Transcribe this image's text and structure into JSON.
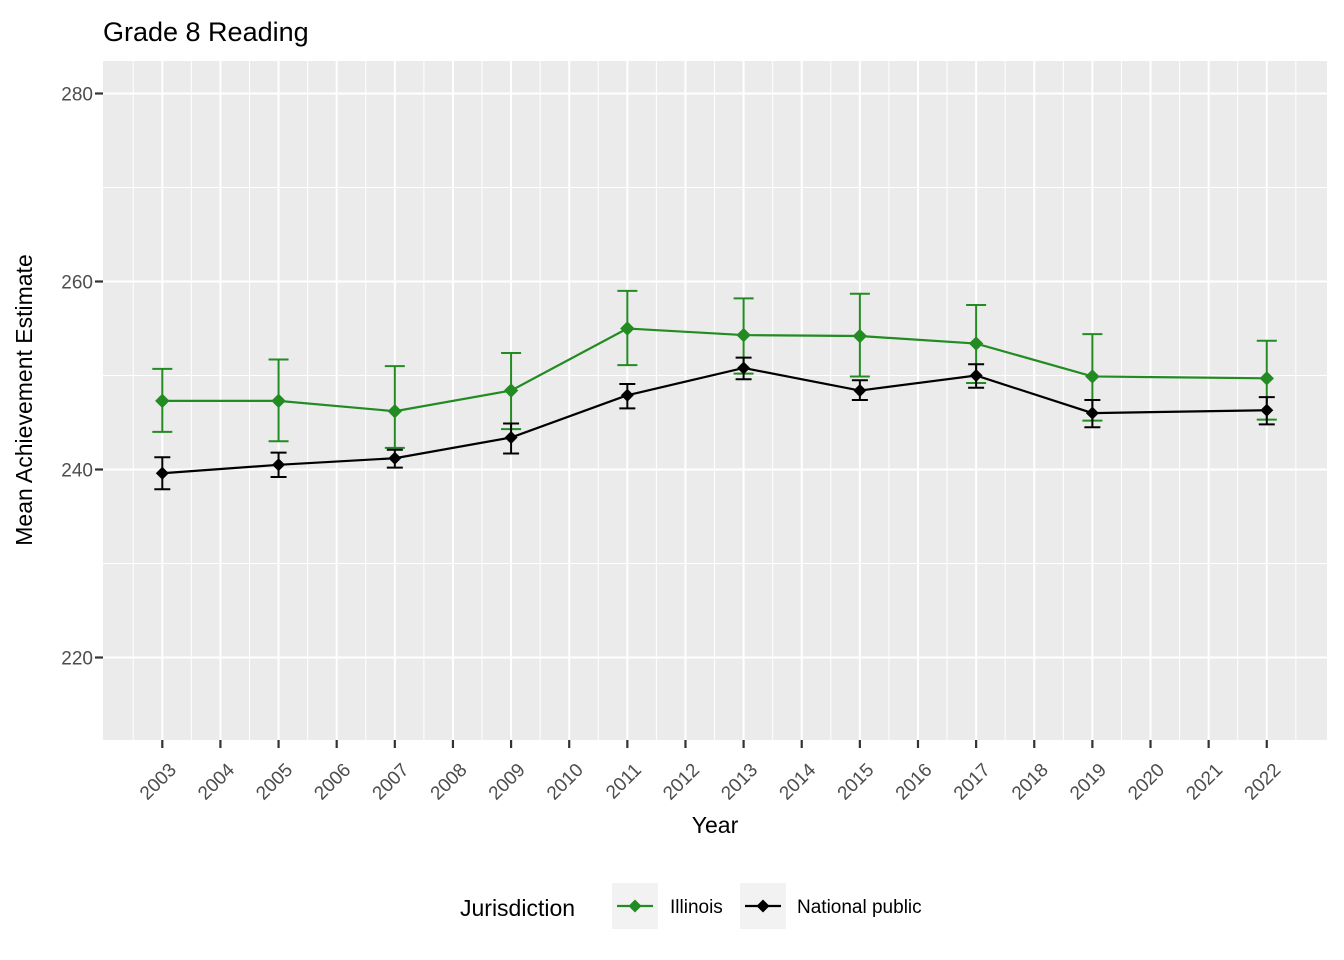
{
  "title": "Grade 8 Reading",
  "axes": {
    "x_label": "Year",
    "y_label": "Mean Achievement Estimate"
  },
  "legend": {
    "title": "Jurisdiction",
    "position": "bottom",
    "items": [
      {
        "label": "Illinois",
        "color": "#228B22"
      },
      {
        "label": "National public",
        "color": "#000000"
      }
    ]
  },
  "colors": {
    "panel_background": "#EBEBEB",
    "gridline": "#FFFFFF",
    "tick_mark": "#333333",
    "tick_label": "#4D4D4D",
    "title_text": "#000000",
    "legend_key_background": "#F2F2F2"
  },
  "chart_data": {
    "type": "line",
    "title": "Grade 8 Reading",
    "xlabel": "Year",
    "ylabel": "Mean Achievement Estimate",
    "grid": true,
    "legend_position": "bottom",
    "xlim": [
      2002,
      2023.1
    ],
    "ylim": [
      211,
      283.5
    ],
    "x_ticks": [
      2003,
      2004,
      2005,
      2006,
      2007,
      2008,
      2009,
      2010,
      2011,
      2012,
      2013,
      2014,
      2015,
      2016,
      2017,
      2018,
      2019,
      2020,
      2021,
      2022
    ],
    "y_ticks": [
      220,
      240,
      260,
      280
    ],
    "y_minor_ticks": [
      230,
      250,
      270
    ],
    "error_bars": true,
    "series": [
      {
        "name": "Illinois",
        "color": "#228B22",
        "marker": "diamond",
        "x": [
          2003,
          2005,
          2007,
          2009,
          2011,
          2013,
          2015,
          2017,
          2019,
          2022
        ],
        "y": [
          247.3,
          247.3,
          246.2,
          248.4,
          255.0,
          254.3,
          254.2,
          253.4,
          249.9,
          249.7
        ],
        "err_low": [
          244.0,
          243.0,
          242.3,
          244.3,
          251.1,
          250.2,
          249.9,
          249.2,
          245.2,
          245.3
        ],
        "err_high": [
          250.7,
          251.7,
          251.0,
          252.4,
          259.0,
          258.2,
          258.7,
          257.5,
          254.4,
          253.7
        ]
      },
      {
        "name": "National public",
        "color": "#000000",
        "marker": "diamond",
        "x": [
          2003,
          2005,
          2007,
          2009,
          2011,
          2013,
          2015,
          2017,
          2019,
          2022
        ],
        "y": [
          239.6,
          240.5,
          241.2,
          243.4,
          247.9,
          250.8,
          248.4,
          250.0,
          246.0,
          246.3
        ],
        "err_low": [
          237.9,
          239.2,
          240.2,
          241.7,
          246.5,
          249.6,
          247.4,
          248.7,
          244.5,
          244.8
        ],
        "err_high": [
          241.3,
          241.8,
          242.1,
          244.9,
          249.1,
          251.9,
          249.5,
          251.2,
          247.4,
          247.7
        ]
      }
    ]
  }
}
